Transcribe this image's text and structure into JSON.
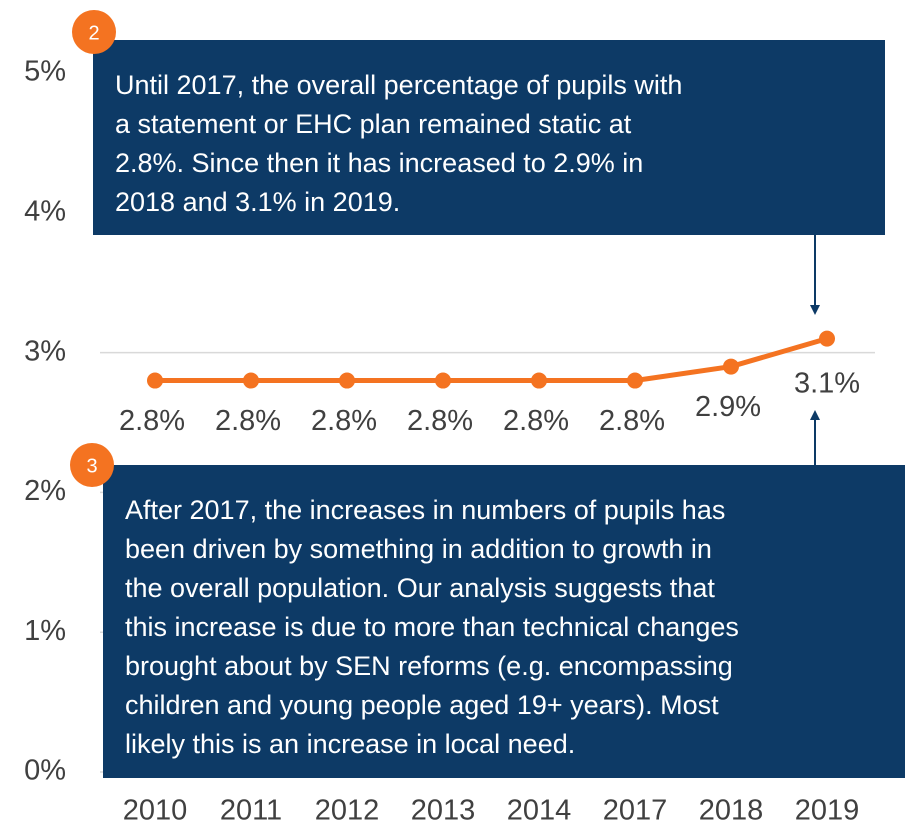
{
  "chart_data": {
    "type": "line",
    "categories": [
      "2010",
      "2011",
      "2012",
      "2013",
      "2014",
      "2017",
      "2018",
      "2019"
    ],
    "series": [
      {
        "color": "#f47321",
        "values": [
          2.8,
          2.8,
          2.8,
          2.8,
          2.8,
          2.8,
          2.9,
          3.1
        ],
        "value_labels": [
          "2.8%",
          "2.8%",
          "2.8%",
          "2.8%",
          "2.8%",
          "2.8%",
          "2.9%",
          "3.1%"
        ]
      }
    ],
    "ylim": [
      0,
      5
    ],
    "yticks": [
      {
        "value": 0,
        "label": "0%"
      },
      {
        "value": 1,
        "label": "1%"
      },
      {
        "value": 2,
        "label": "2%"
      },
      {
        "value": 3,
        "label": "3%"
      },
      {
        "value": 4,
        "label": "4%"
      },
      {
        "value": 5,
        "label": "5%"
      }
    ],
    "grid": true,
    "annotations": [
      {
        "label": "2",
        "lines": [
          "Until 2017, the overall percentage of pupils with",
          "a statement or EHC plan remained static at",
          "2.8%. Since then it has increased to 2.9% in",
          "2018 and 3.1% in 2019."
        ]
      },
      {
        "label": "3",
        "lines": [
          "After 2017, the increases in numbers of pupils has",
          "been driven by something in addition to growth in",
          "the overall population. Our analysis suggests that",
          "this increase is due to more than technical changes",
          "brought about by SEN reforms (e.g. encompassing",
          "children and young people aged 19+ years). Most",
          "likely this is an increase in local need."
        ]
      }
    ]
  }
}
